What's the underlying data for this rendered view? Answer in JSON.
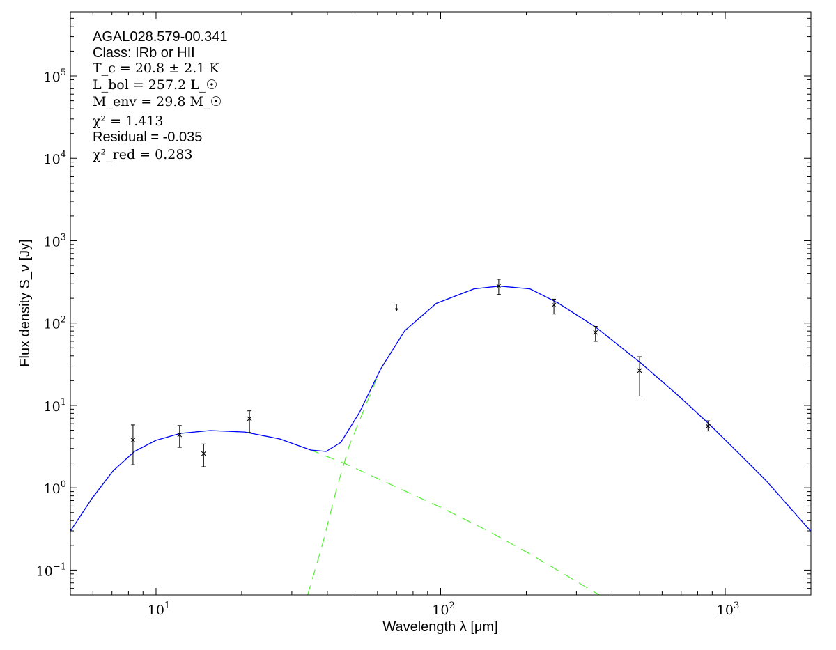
{
  "chart_data": {
    "type": "scatter",
    "xlabel": "Wavelength λ [μm]",
    "ylabel": "Flux density S_ν [Jy]",
    "xscale": "log",
    "yscale": "log",
    "xlim": [
      5,
      2000
    ],
    "ylim": [
      0.05,
      600000
    ],
    "grid": false,
    "x_ticks": [
      {
        "base": "10",
        "exp": "1",
        "value": 10
      },
      {
        "base": "10",
        "exp": "2",
        "value": 100
      },
      {
        "base": "10",
        "exp": "3",
        "value": 1000
      }
    ],
    "y_ticks": [
      {
        "base": "10",
        "exp": "−1",
        "value": 0.1
      },
      {
        "base": "10",
        "exp": "0",
        "value": 1
      },
      {
        "base": "10",
        "exp": "1",
        "value": 10
      },
      {
        "base": "10",
        "exp": "2",
        "value": 100
      },
      {
        "base": "10",
        "exp": "3",
        "value": 1000
      },
      {
        "base": "10",
        "exp": "4",
        "value": 10000
      },
      {
        "base": "10",
        "exp": "5",
        "value": 100000
      }
    ],
    "annotations": {
      "source": "AGAL028.579-00.341",
      "class": "Class: IRb or HII",
      "tc": "T_c = 20.8 ± 2.1 K",
      "lbol": "L_bol = 257.2 L_☉",
      "menv": "M_env = 29.8 M_☉",
      "chi2": "χ² = 1.413",
      "residual": "Residual = -0.035",
      "chi2red": "χ²_red = 0.283"
    },
    "colors": {
      "model": "#0000ff",
      "components": "#55ee33",
      "points": "#000000"
    },
    "points": [
      {
        "x": 8.3,
        "y": 3.8,
        "ylo": 1.9,
        "yhi": 5.8
      },
      {
        "x": 12.1,
        "y": 4.4,
        "ylo": 3.1,
        "yhi": 5.7
      },
      {
        "x": 14.7,
        "y": 2.6,
        "ylo": 1.8,
        "yhi": 3.4
      },
      {
        "x": 21.3,
        "y": 6.9,
        "ylo": 4.7,
        "yhi": 8.6
      },
      {
        "x": 160,
        "y": 281,
        "ylo": 222,
        "yhi": 340
      },
      {
        "x": 250,
        "y": 166,
        "ylo": 129,
        "yhi": 195
      },
      {
        "x": 350,
        "y": 77,
        "ylo": 60,
        "yhi": 91
      },
      {
        "x": 500,
        "y": 26.5,
        "ylo": 13,
        "yhi": 39
      },
      {
        "x": 870,
        "y": 5.6,
        "ylo": 4.9,
        "yhi": 6.5
      }
    ],
    "upper_limits": [
      {
        "x": 70,
        "y": 160
      }
    ],
    "series": [
      {
        "style": "solid",
        "x": [
          5.0,
          5.96,
          7.06,
          8.4,
          10,
          12.2,
          15.5,
          20.5,
          27.2,
          35.0,
          39.6,
          44.6,
          51.9,
          61.5,
          74.8,
          96.4,
          131,
          161,
          206,
          258,
          351,
          501,
          672,
          869,
          1112,
          1393,
          1995
        ],
        "y": [
          0.298,
          0.746,
          1.6,
          2.76,
          3.77,
          4.58,
          4.95,
          4.76,
          3.92,
          2.87,
          2.76,
          3.55,
          8.23,
          27.6,
          80.7,
          173,
          260,
          281,
          260,
          176,
          89,
          33.5,
          13.9,
          6.14,
          2.65,
          1.22,
          0.298
        ]
      },
      {
        "style": "dashed",
        "x": [
          5.0,
          5.96,
          7.06,
          8.4,
          10,
          12.2,
          15.5,
          20.5,
          27.2,
          35.0,
          45.9,
          70.8,
          100,
          147,
          206,
          361
        ],
        "y": [
          0.298,
          0.746,
          1.6,
          2.76,
          3.77,
          4.58,
          4.95,
          4.76,
          3.92,
          2.87,
          1.98,
          1.0,
          0.579,
          0.298,
          0.157,
          0.05
        ]
      },
      {
        "style": "dashed",
        "x": [
          34.1,
          38.5,
          43.2,
          47.7,
          61.5,
          74.8,
          96.4,
          131,
          161,
          206,
          258,
          351,
          501,
          672,
          869,
          1112,
          1393,
          1995
        ],
        "y": [
          0.05,
          0.21,
          1.0,
          3.22,
          27.6,
          80.7,
          173,
          260,
          281,
          260,
          176,
          89,
          33.5,
          13.9,
          6.14,
          2.65,
          1.22,
          0.298
        ]
      }
    ]
  }
}
